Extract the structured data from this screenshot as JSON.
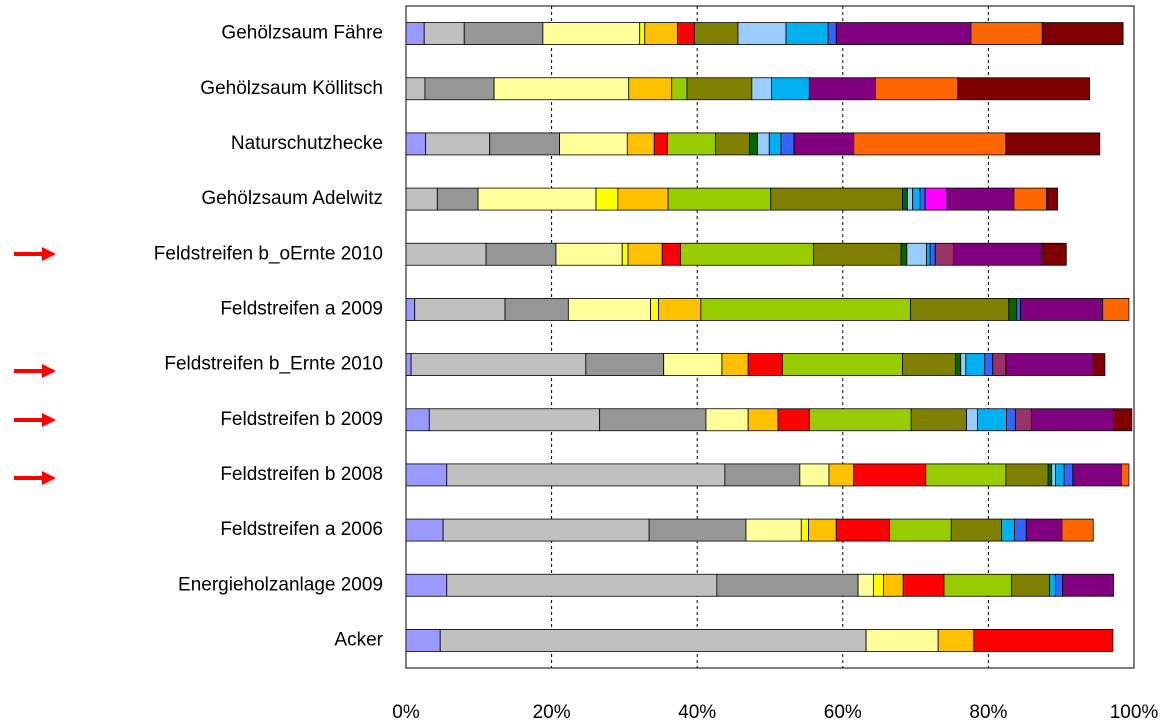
{
  "chart_data": {
    "type": "stacked-barh",
    "categories": [
      "Gehölzsaum Fähre",
      "Gehölzsaum Köllitsch",
      "Naturschutzhecke",
      "Gehölzsaum Adelwitz",
      "Feldstreifen b_oErnte 2010",
      "Feldstreifen a 2009",
      "Feldstreifen b_Ernte 2010",
      "Feldstreifen b 2009",
      "Feldstreifen b 2008",
      "Feldstreifen a 2006",
      "Energieholzanlage  2009",
      "Acker"
    ],
    "series": [
      {
        "color": "#9999ff",
        "values": [
          2.5,
          0,
          2.7,
          0,
          0,
          1.2,
          0.7,
          3.2,
          5.6,
          5.1,
          5.6,
          4.7
        ]
      },
      {
        "color": "#c0c0c0",
        "values": [
          5.5,
          2.6,
          8.8,
          4.3,
          11.0,
          12.4,
          24.0,
          23.4,
          38.2,
          28.3,
          37.1,
          58.5
        ]
      },
      {
        "color": "#969696",
        "values": [
          10.8,
          9.5,
          9.6,
          5.6,
          9.6,
          8.7,
          10.7,
          14.6,
          10.3,
          13.3,
          19.4,
          0
        ]
      },
      {
        "color": "#ffff99",
        "values": [
          13.3,
          18.5,
          9.3,
          16.2,
          9.1,
          11.3,
          8.0,
          5.8,
          4.0,
          7.6,
          2.1,
          9.9
        ]
      },
      {
        "color": "#ffff00",
        "values": [
          0.7,
          0,
          0,
          3.0,
          0.8,
          1.1,
          0,
          0,
          0,
          1.0,
          1.4,
          0
        ]
      },
      {
        "color": "#ffc000",
        "values": [
          4.5,
          5.9,
          3.7,
          6.9,
          4.7,
          5.8,
          3.6,
          4.1,
          3.4,
          3.8,
          2.7,
          4.9
        ]
      },
      {
        "color": "#ff0000",
        "values": [
          2.3,
          0,
          1.8,
          0,
          2.5,
          0,
          4.7,
          4.3,
          9.9,
          7.3,
          5.6,
          19.1
        ]
      },
      {
        "color": "#99cc00",
        "values": [
          0,
          2.1,
          6.6,
          14.1,
          18.3,
          28.8,
          16.5,
          14.0,
          11.0,
          8.5,
          9.3,
          0
        ]
      },
      {
        "color": "#808000",
        "values": [
          6.0,
          8.9,
          4.7,
          18.1,
          12.0,
          13.5,
          7.3,
          7.6,
          5.8,
          6.9,
          5.2,
          0
        ]
      },
      {
        "color": "#006600",
        "values": [
          0,
          0,
          1.1,
          0.7,
          0.8,
          1.1,
          0.7,
          0,
          0.5,
          0,
          0,
          0
        ]
      },
      {
        "color": "#99ccff",
        "values": [
          6.6,
          2.7,
          1.6,
          0.7,
          2.7,
          0,
          0.7,
          1.5,
          0.5,
          0,
          0,
          0
        ]
      },
      {
        "color": "#00b0f0",
        "values": [
          5.8,
          5.2,
          1.6,
          1.0,
          0.5,
          0,
          2.6,
          4.0,
          1.2,
          1.8,
          0.8,
          0
        ]
      },
      {
        "color": "#3366ff",
        "values": [
          1.1,
          0,
          1.8,
          0.7,
          0.7,
          0.5,
          1.1,
          1.2,
          1.2,
          1.6,
          1.0,
          0
        ]
      },
      {
        "color": "#ff00ff",
        "values": [
          0,
          0,
          0,
          3.0,
          0,
          0,
          0,
          0,
          0,
          0,
          0,
          0
        ]
      },
      {
        "color": "#993366",
        "values": [
          0,
          0,
          0,
          0,
          2.5,
          0,
          1.8,
          2.2,
          0,
          0,
          0,
          0
        ]
      },
      {
        "color": "#800080",
        "values": [
          18.5,
          9.1,
          8.2,
          9.2,
          12.2,
          11.3,
          12.0,
          11.3,
          6.7,
          4.9,
          7.0,
          0
        ]
      },
      {
        "color": "#ff6600",
        "values": [
          9.8,
          11.3,
          20.9,
          4.5,
          0,
          3.6,
          0,
          0,
          1.0,
          4.3,
          0,
          0
        ]
      },
      {
        "color": "#800000",
        "values": [
          11.1,
          18.1,
          12.9,
          1.5,
          3.3,
          0,
          1.6,
          2.5,
          0,
          0,
          0,
          0
        ]
      }
    ],
    "xlim": [
      0,
      100
    ],
    "xticks": [
      {
        "value": 0,
        "label": "0%"
      },
      {
        "value": 20,
        "label": "20%"
      },
      {
        "value": 40,
        "label": "40%"
      },
      {
        "value": 60,
        "label": "60%"
      },
      {
        "value": 80,
        "label": "80%"
      },
      {
        "value": 100,
        "label": "100%"
      }
    ],
    "grid": true
  }
}
